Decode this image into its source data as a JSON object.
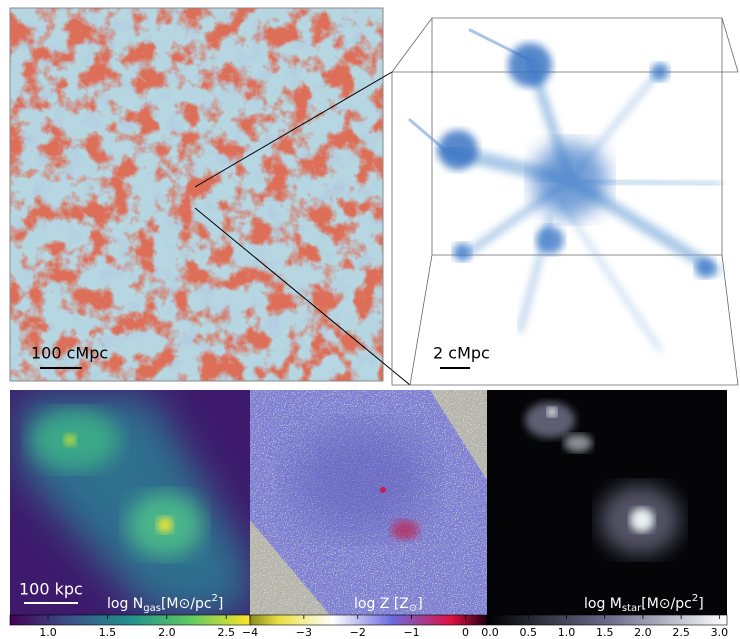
{
  "top": {
    "left_scale": "100 cMpc",
    "right_scale": "2 cMpc"
  },
  "panels": [
    {
      "scale": "100 kpc",
      "label": {
        "prefix": "log N",
        "sub": "gas",
        "unit": "[M⊙/pc",
        "sup": "2",
        "suffix": "]"
      },
      "colorbar": {
        "clim": [
          0.68,
          2.7
        ],
        "ticks": [
          {
            "value": 1,
            "label": "1.0"
          },
          1.5,
          {
            "value": 2,
            "label": "2.0"
          },
          2.5
        ]
      }
    },
    {
      "label": {
        "prefix": "log Z [Z",
        "sub": "⊙",
        "suffix": "]"
      },
      "colorbar": {
        "clim": [
          -4,
          0.4
        ],
        "ticks": [
          {
            "value": -4,
            "label": "−4"
          },
          {
            "value": -3,
            "label": "−3"
          },
          {
            "value": -2,
            "label": "−2"
          },
          {
            "value": -1,
            "label": "−1"
          },
          0
        ]
      }
    },
    {
      "label": {
        "prefix": "log M",
        "sub": "star",
        "unit": "[M⊙/pc",
        "sup": "2",
        "suffix": "]"
      },
      "colorbar": {
        "clim": [
          -0.04,
          3.1
        ],
        "ticks": [
          {
            "value": 0,
            "label": "0.0"
          },
          0.5,
          {
            "value": 1,
            "label": "1.0"
          },
          1.5,
          {
            "value": 2,
            "label": "2.0"
          },
          2.5,
          {
            "value": 3,
            "label": "3.0"
          }
        ]
      }
    }
  ]
}
